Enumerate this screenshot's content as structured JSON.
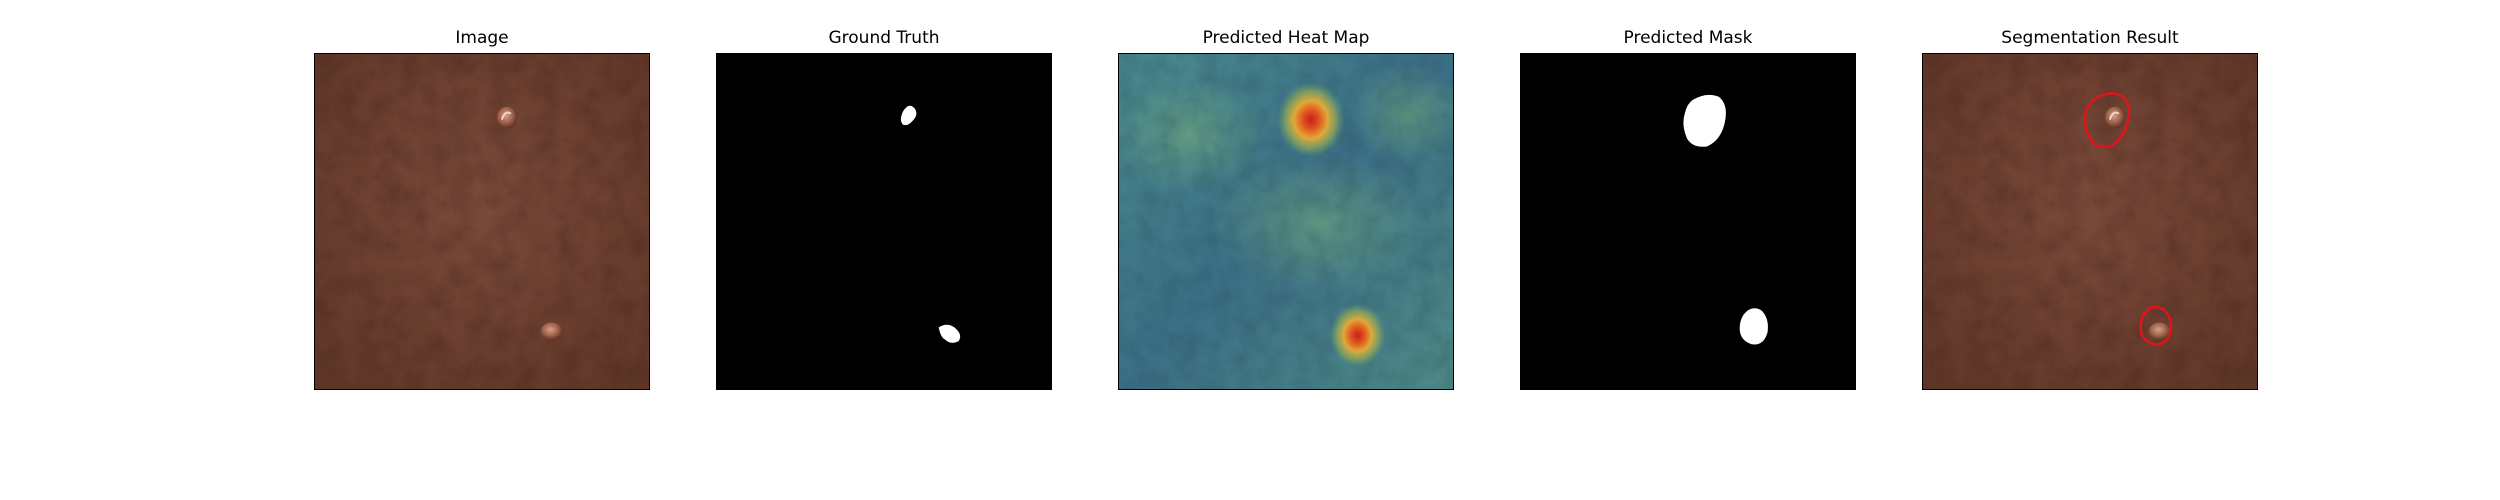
{
  "panels": [
    {
      "title": "Image"
    },
    {
      "title": "Ground Truth"
    },
    {
      "title": "Predicted Heat Map"
    },
    {
      "title": "Predicted Mask"
    },
    {
      "title": "Segmentation Result"
    }
  ],
  "colors": {
    "leather": "#6f4233",
    "mask_background": "#000000",
    "mask_foreground": "#ffffff",
    "heatmap_low": "#3f7f8c",
    "heatmap_high": "#d9341c",
    "contour": "#e0141a"
  }
}
